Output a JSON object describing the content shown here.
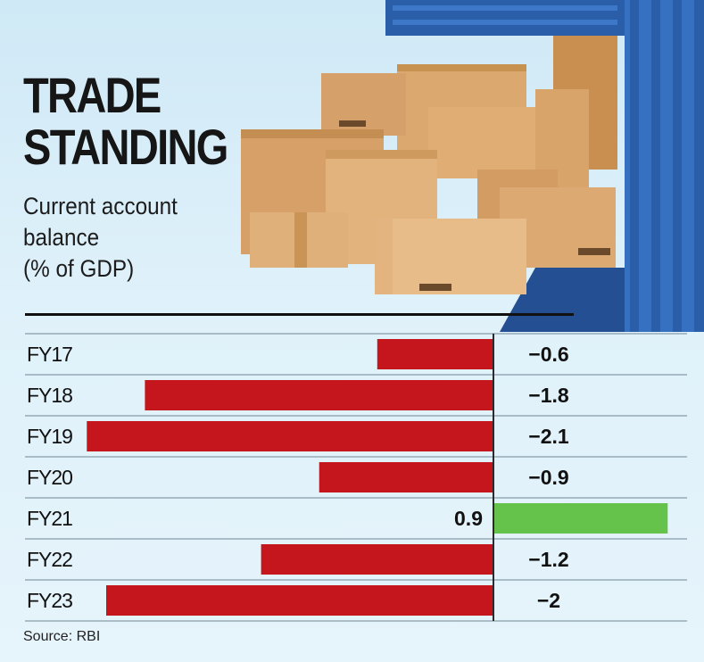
{
  "header": {
    "title_line1": "TRADE",
    "title_line2": "STANDING",
    "subtitle_line1": "Current account",
    "subtitle_line2": "balance",
    "subtitle_line3": "(% of GDP)"
  },
  "source": "Source: RBI",
  "colors": {
    "negative": "#c4161c",
    "positive": "#65c24a",
    "container": "#2f67b8",
    "box": "#d9a469"
  },
  "chart_data": {
    "type": "bar",
    "orientation": "horizontal",
    "title": "TRADE STANDING",
    "subtitle": "Current account balance (% of GDP)",
    "categories": [
      "FY17",
      "FY18",
      "FY19",
      "FY20",
      "FY21",
      "FY22",
      "FY23"
    ],
    "values": [
      -0.6,
      -1.8,
      -2.1,
      -0.9,
      0.9,
      -1.2,
      -2
    ],
    "value_labels": [
      "−0.6",
      "−1.8",
      "−2.1",
      "−0.9",
      "0.9",
      "−1.2",
      "−2"
    ],
    "xlim": [
      -2.1,
      0.9
    ],
    "unit": "% of GDP",
    "source": "Source: RBI"
  }
}
